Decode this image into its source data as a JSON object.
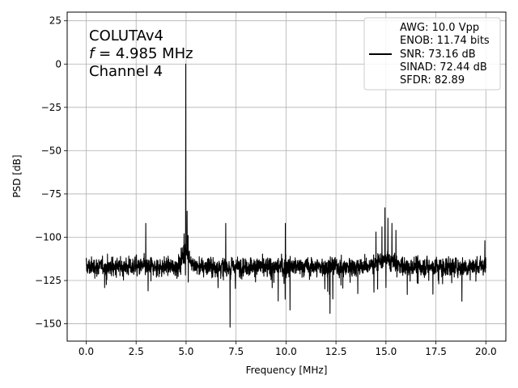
{
  "chart_data": {
    "type": "line",
    "xlabel": "Frequency [MHz]",
    "ylabel": "PSD [dB]",
    "xlim": [
      -0.95,
      21.0
    ],
    "ylim": [
      -160,
      30
    ],
    "xticks": [
      0.0,
      2.5,
      5.0,
      7.5,
      10.0,
      12.5,
      15.0,
      17.5,
      20.0
    ],
    "xtick_labels": [
      "0.0",
      "2.5",
      "5.0",
      "7.5",
      "10.0",
      "12.5",
      "15.0",
      "17.5",
      "20.0"
    ],
    "yticks": [
      25,
      0,
      -25,
      -50,
      -75,
      -100,
      -125,
      -150
    ],
    "ytick_labels": [
      "25",
      "0",
      "−25",
      "−50",
      "−75",
      "−100",
      "−125",
      "−150"
    ],
    "grid": true,
    "line_color": "#000000",
    "annotation": {
      "line1": "COLUTAv4",
      "line2_italic": "f",
      "line2_rest": " = 4.985 MHz",
      "line3": "Channel 4"
    },
    "legend": {
      "placement": "top-right",
      "entries": [
        "AWG: 10.0 Vpp",
        "ENOB: 11.74 bits",
        "SNR: 73.16 dB",
        "SINAD: 72.44 dB",
        "SFDR: 82.89"
      ]
    },
    "noise_floor": {
      "x_range": [
        0.0,
        20.0
      ],
      "mean": -117,
      "typical_band": [
        -127,
        -107
      ]
    },
    "peaks": [
      {
        "x": 4.985,
        "y": 0
      },
      {
        "x": 4.9,
        "y": -98
      },
      {
        "x": 5.05,
        "y": -85
      },
      {
        "x": 5.1,
        "y": -99
      },
      {
        "x": 2.98,
        "y": -92
      },
      {
        "x": 6.98,
        "y": -92
      },
      {
        "x": 9.97,
        "y": -92
      },
      {
        "x": 14.5,
        "y": -97
      },
      {
        "x": 14.8,
        "y": -94
      },
      {
        "x": 14.95,
        "y": -83
      },
      {
        "x": 15.1,
        "y": -89
      },
      {
        "x": 15.3,
        "y": -92
      },
      {
        "x": 15.5,
        "y": -96
      },
      {
        "x": 19.95,
        "y": -102
      }
    ],
    "dips": [
      {
        "x": 7.2,
        "y": -152
      },
      {
        "x": 12.2,
        "y": -144
      },
      {
        "x": 18.8,
        "y": -137
      },
      {
        "x": 10.2,
        "y": -142
      }
    ]
  }
}
